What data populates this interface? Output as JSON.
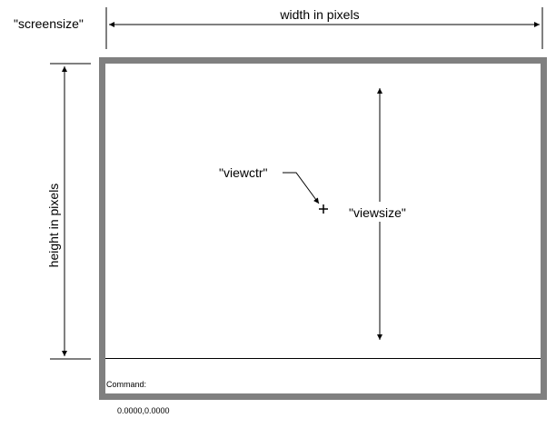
{
  "labels": {
    "screensize": "\"screensize\"",
    "width": "width in pixels",
    "height": "height in pixels",
    "viewctr": "\"viewctr\"",
    "viewsize": "\"viewsize\""
  },
  "command_line": {
    "prompt": "Command:",
    "coordinates": "0.0000,0.0000"
  },
  "colors": {
    "frame": "#808080",
    "line": "#000000",
    "background": "#ffffff"
  }
}
